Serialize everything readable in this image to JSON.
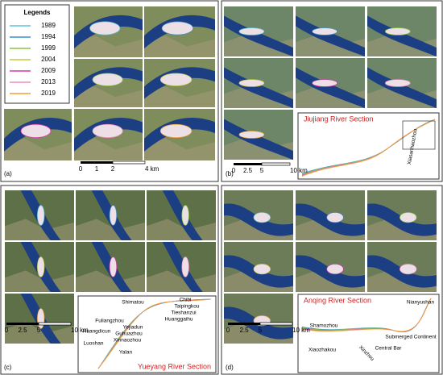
{
  "legend": {
    "title": "Legends",
    "items": [
      {
        "label": "1989",
        "color": "#5fc4d8"
      },
      {
        "label": "1994",
        "color": "#3a8fc8"
      },
      {
        "label": "1999",
        "color": "#8cc63f"
      },
      {
        "label": "2004",
        "color": "#c8c83c"
      },
      {
        "label": "2009",
        "color": "#d63aa8"
      },
      {
        "label": "2013",
        "color": "#f08cc0"
      },
      {
        "label": "2019",
        "color": "#f0a030"
      }
    ]
  },
  "panels": [
    {
      "label": "(a)",
      "scale": [
        "0",
        "1",
        "2",
        "4 km"
      ]
    },
    {
      "label": "(b)",
      "section": "Jiujiang River Section",
      "places": [
        "Xiasanhaozhou"
      ],
      "scale": [
        "0",
        "2.5",
        "5",
        "10 km"
      ]
    },
    {
      "label": "(c)",
      "section": "Yueyang River Section",
      "places": [
        "Shimatou",
        "Chibi",
        "Taipingkou",
        "Tieshanzui",
        "Huanggaihu",
        "Fuliangzhou",
        "Yejiadun",
        "Guhuazhou",
        "Xinnaozhou",
        "Huangdicun",
        "Luoshan",
        "Yalan"
      ],
      "scale": [
        "0",
        "2.5",
        "5",
        "10 km"
      ]
    },
    {
      "label": "(d)",
      "section": "Anqing River Section",
      "places": [
        "Nianyushan",
        "Shamozhou",
        "Submerged Continent",
        "Central Bar",
        "Xiaozhakou",
        "Xinzhou"
      ],
      "scale": [
        "0",
        "2.5",
        "5",
        "10 km"
      ]
    }
  ]
}
